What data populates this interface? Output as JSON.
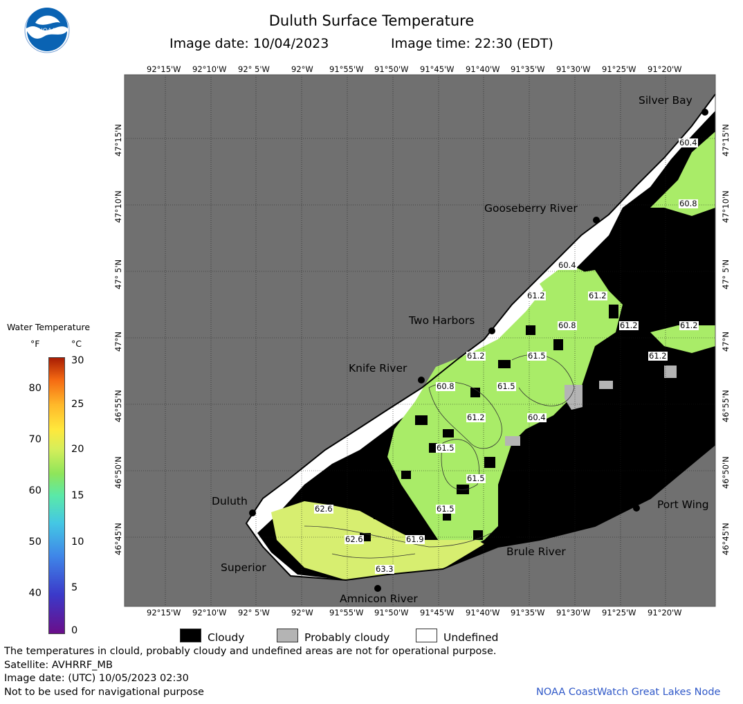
{
  "header": {
    "title": "Duluth Surface Temperature",
    "image_date": "Image date: 10/04/2023",
    "image_time": "Image time: 22:30 (EDT)"
  },
  "logo": {
    "text": "NOAA",
    "color": "#0a63b3"
  },
  "map": {
    "lon_labels": [
      "92°15'W",
      "92°10'W",
      "92° 5'W",
      "92°W",
      "91°55'W",
      "91°50'W",
      "91°45'W",
      "91°40'W",
      "91°35'W",
      "91°30'W",
      "91°25'W",
      "91°20'W"
    ],
    "lat_labels": [
      "47°15'N",
      "47°10'N",
      "47° 5'N",
      "47°N",
      "46°55'N",
      "46°50'N",
      "46°45'N"
    ],
    "places": [
      {
        "name": "Silver Bay",
        "lat": "47°17.3'N",
        "lon": "91°16.5'W"
      },
      {
        "name": "Gooseberry River",
        "lat": "47°08.4'N",
        "lon": "91°27.6'W"
      },
      {
        "name": "Two Harbors",
        "lat": "47°01.1'N",
        "lon": "91°39.7'W"
      },
      {
        "name": "Knife River",
        "lat": "46°56.8'N",
        "lon": "91°46.9'W"
      },
      {
        "name": "Duluth",
        "lat": "46°47.2'N",
        "lon": "92°05.6'W"
      },
      {
        "name": "Port Wing",
        "lat": "46°47.3'N",
        "lon": "91°23.2'W"
      },
      {
        "name": "Brule River",
        "lat": "46°44.6'N",
        "lon": "91°36.5'W"
      },
      {
        "name": "Superior",
        "lat": "46°43.3'N",
        "lon": "92°06.2'W"
      },
      {
        "name": "Amnicon River",
        "lat": "46°41.7'N",
        "lon": "91°51.3'W"
      }
    ],
    "temperature_labels": [
      "60.4",
      "60.8",
      "60.4",
      "61.2",
      "61.2",
      "60.8",
      "61.2",
      "61.2",
      "61.2",
      "61.2",
      "61.5",
      "60.8",
      "61.5",
      "61.2",
      "60.4",
      "61.5",
      "61.5",
      "61.5",
      "62.6",
      "62.6",
      "61.9",
      "63.3"
    ],
    "colors": {
      "land": "#707070",
      "cloudy": "#000000",
      "probably_cloudy": "#b4b4b4",
      "undefined": "#ffffff",
      "water_warm": "#d7ee70",
      "water_cool": "#a9ec68"
    }
  },
  "colorbar": {
    "title": "Water Temperature",
    "unit_f": "°F",
    "unit_c": "°C",
    "f_ticks": [
      "80",
      "70",
      "60",
      "50",
      "40"
    ],
    "c_ticks": [
      "30",
      "25",
      "20",
      "15",
      "10",
      "5",
      "0"
    ]
  },
  "legend": [
    {
      "label": "Cloudy",
      "color": "#000000"
    },
    {
      "label": "Probably cloudy",
      "color": "#b4b4b4"
    },
    {
      "label": "Undefined",
      "color": "#ffffff"
    }
  ],
  "footer": {
    "disclaimer": "The temperatures in clould, probably cloudy and undefined areas are not for operational purpose.",
    "satellite": "Satellite: AVHRRF_MB",
    "utc_date": "Image date: (UTC) 10/05/2023  02:30",
    "navigation": "Not to be used for navigational purpose",
    "credit": "NOAA CoastWatch Great Lakes Node"
  }
}
